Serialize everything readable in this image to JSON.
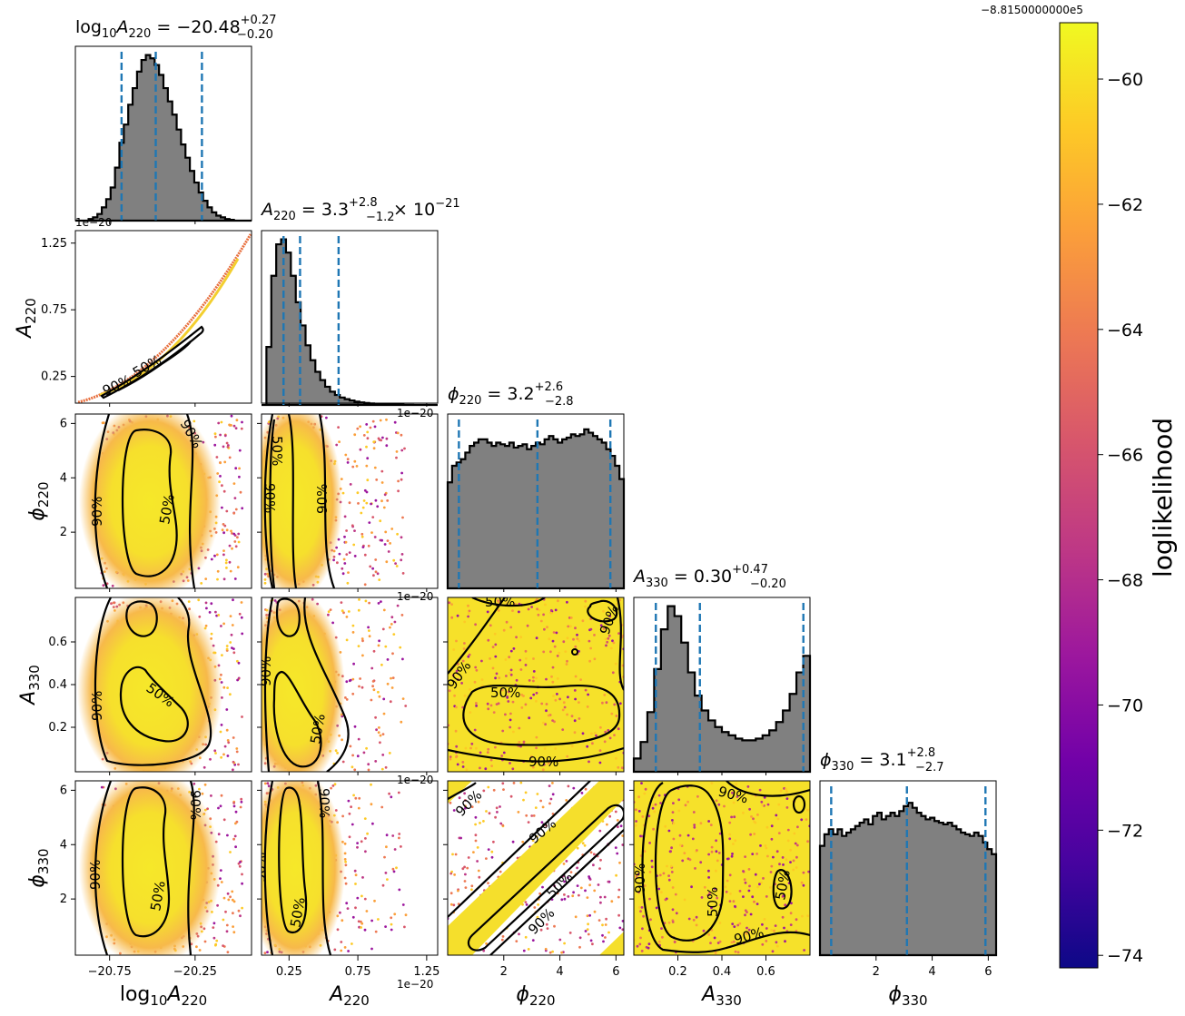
{
  "chart_data": {
    "type": "corner",
    "parameters": [
      {
        "key": "log10A220",
        "symbol": "log",
        "sub": "10",
        "symbol2": "A",
        "sub2": "220",
        "range": [
          -20.95,
          -19.92
        ],
        "title_main": "log",
        "title_sub": "10",
        "title_A": "A",
        "title_sub2": "220",
        "title_eq": " = −20.48",
        "title_sup": "+0.27",
        "title_lo": "−0.20",
        "median": -20.48,
        "q_low": -20.68,
        "q_high": -20.21,
        "ticks": [
          -20.75,
          -20.25
        ],
        "tick_labels": [
          "−20.75",
          "−20.25"
        ],
        "axis_label_main": "log",
        "axis_label_sub": "10",
        "axis_label_A": "A",
        "axis_label_sub2": "220"
      },
      {
        "key": "A220",
        "range": [
          5e-22,
          1.33e-20
        ],
        "title_A": "A",
        "title_sub": "220",
        "title_eq": " = 3.3",
        "title_sup": "+2.8",
        "title_lo": "−1.2",
        "title_tail": " × 10",
        "title_tail_sup": "−21",
        "median": 3.3e-21,
        "q_low": 2.1e-21,
        "q_high": 6.1e-21,
        "ticks": [
          0.25,
          0.75,
          1.25
        ],
        "tick_labels": [
          "0.25",
          "0.75",
          "1.25"
        ],
        "offset_label": "1e−20",
        "axis_label_A": "A",
        "axis_label_sub": "220"
      },
      {
        "key": "phi220",
        "range": [
          0.0,
          6.28
        ],
        "title_A": "ϕ",
        "title_sub": "220",
        "title_eq": " = 3.2",
        "title_sup": "+2.6",
        "title_lo": "−2.8",
        "median": 3.2,
        "q_low": 0.4,
        "q_high": 5.8,
        "ticks": [
          2,
          4,
          6
        ],
        "tick_labels": [
          "2",
          "4",
          "6"
        ],
        "axis_label_A": "ϕ",
        "axis_label_sub": "220"
      },
      {
        "key": "A330",
        "range": [
          0.0,
          0.8
        ],
        "title_A": "A",
        "title_sub": "330",
        "title_eq": " = 0.30",
        "title_sup": "+0.47",
        "title_lo": "−0.20",
        "median": 0.3,
        "q_low": 0.1,
        "q_high": 0.77,
        "ticks": [
          0.2,
          0.4,
          0.6
        ],
        "tick_labels": [
          "0.2",
          "0.4",
          "0.6"
        ],
        "axis_label_A": "A",
        "axis_label_sub": "330"
      },
      {
        "key": "phi330",
        "range": [
          0.0,
          6.28
        ],
        "title_A": "ϕ",
        "title_sub": "330",
        "title_eq": " = 3.1",
        "title_sup": "+2.8",
        "title_lo": "−2.7",
        "median": 3.1,
        "q_low": 0.4,
        "q_high": 5.9,
        "ticks": [
          2,
          4,
          6
        ],
        "tick_labels": [
          "2",
          "4",
          "6"
        ],
        "axis_label_A": "ϕ",
        "axis_label_sub": "330"
      }
    ],
    "row_ticks": {
      "A220": {
        "ticks": [
          0.25,
          0.75,
          1.25
        ],
        "tick_labels": [
          "0.25",
          "0.75",
          "1.25"
        ],
        "offset_label": "1e−20"
      },
      "phi220": {
        "ticks": [
          2,
          4,
          6
        ],
        "tick_labels": [
          "2",
          "4",
          "6"
        ]
      },
      "A330": {
        "ticks": [
          0.2,
          0.4,
          0.6
        ],
        "tick_labels": [
          "0.2",
          "0.4",
          "0.6"
        ]
      },
      "phi330": {
        "ticks": [
          2,
          4,
          6
        ],
        "tick_labels": [
          "2",
          "4",
          "6"
        ]
      }
    },
    "contour_levels": [
      "50%",
      "90%"
    ],
    "histograms": {
      "log10A220": [
        0,
        0,
        0,
        0.01,
        0.02,
        0.04,
        0.08,
        0.13,
        0.2,
        0.32,
        0.47,
        0.58,
        0.7,
        0.8,
        0.9,
        0.97,
        1.0,
        0.98,
        0.94,
        0.88,
        0.8,
        0.72,
        0.64,
        0.55,
        0.46,
        0.38,
        0.3,
        0.23,
        0.17,
        0.12,
        0.08,
        0.05,
        0.03,
        0.02,
        0.01,
        0.005,
        0,
        0,
        0,
        0
      ],
      "A220": [
        0.0,
        0.35,
        0.78,
        0.97,
        1.0,
        0.92,
        0.78,
        0.62,
        0.48,
        0.36,
        0.27,
        0.2,
        0.15,
        0.11,
        0.08,
        0.06,
        0.045,
        0.035,
        0.027,
        0.02,
        0.015,
        0.012,
        0.009,
        0.007,
        0.005,
        0.004,
        0.003,
        0.002,
        0.002,
        0.001,
        0.001,
        0.0,
        0.0,
        0.0,
        0.0,
        0.0
      ],
      "phi220": [
        0.64,
        0.74,
        0.76,
        0.78,
        0.82,
        0.86,
        0.88,
        0.9,
        0.9,
        0.88,
        0.86,
        0.88,
        0.87,
        0.86,
        0.88,
        0.85,
        0.86,
        0.87,
        0.84,
        0.86,
        0.88,
        0.87,
        0.9,
        0.92,
        0.9,
        0.88,
        0.9,
        0.91,
        0.93,
        0.92,
        0.93,
        0.96,
        0.94,
        0.92,
        0.9,
        0.88,
        0.84,
        0.8,
        0.74,
        0.66
      ],
      "A330": [
        0.08,
        0.18,
        0.36,
        0.62,
        0.86,
        1.0,
        0.94,
        0.78,
        0.6,
        0.46,
        0.37,
        0.31,
        0.27,
        0.24,
        0.22,
        0.2,
        0.19,
        0.19,
        0.2,
        0.22,
        0.25,
        0.3,
        0.37,
        0.47,
        0.6,
        0.7
      ],
      "phi330": [
        0.66,
        0.73,
        0.76,
        0.73,
        0.76,
        0.72,
        0.74,
        0.76,
        0.78,
        0.8,
        0.82,
        0.79,
        0.84,
        0.86,
        0.82,
        0.84,
        0.86,
        0.84,
        0.87,
        0.9,
        0.92,
        0.89,
        0.86,
        0.84,
        0.82,
        0.83,
        0.81,
        0.8,
        0.79,
        0.8,
        0.78,
        0.76,
        0.74,
        0.73,
        0.72,
        0.74,
        0.72,
        0.68,
        0.64,
        0.61
      ]
    },
    "colorbar": {
      "label": "loglikelihood",
      "offset_label": "−8.8150000000e5",
      "range": [
        -74.2,
        -59.1
      ],
      "ticks": [
        -60,
        -62,
        -64,
        -66,
        -68,
        -70,
        -72,
        -74
      ],
      "tick_labels": [
        "−60",
        "−62",
        "−64",
        "−66",
        "−68",
        "−70",
        "−72",
        "−74"
      ],
      "colormap": "plasma"
    }
  },
  "colors": {
    "hist_fill": "#808080",
    "hist_edge": "#000000",
    "quantile_line": "#1f77b4",
    "contour": "#000000",
    "density_core": "#f5e32a",
    "cmap": [
      "#0d0887",
      "#46039f",
      "#7201a8",
      "#9c179e",
      "#bd3786",
      "#d8576b",
      "#ed7953",
      "#fb9f3a",
      "#fdca26",
      "#f0f921"
    ]
  }
}
